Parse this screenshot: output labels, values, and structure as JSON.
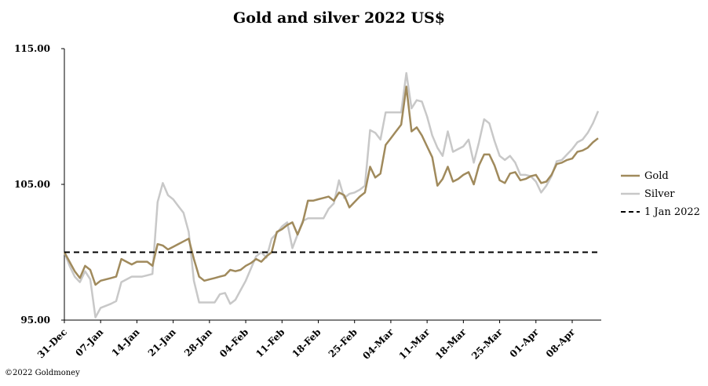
{
  "chart_data": {
    "type": "line",
    "title": "Gold and silver 2022  US$",
    "xlabel": "",
    "ylabel": "",
    "ylim": [
      95,
      115
    ],
    "yticks": [
      "95.00",
      "105.00",
      "115.00"
    ],
    "xticks": [
      "31-Dec",
      "07-Jan",
      "14-Jan",
      "21-Jan",
      "28-Jan",
      "04-Feb",
      "11-Feb",
      "18-Feb",
      "25-Feb",
      "04-Mar",
      "11-Mar",
      "18-Mar",
      "25-Mar",
      "01-Apr",
      "08-Apr"
    ],
    "grid": false,
    "legend_position": "right",
    "series": [
      {
        "name": "Gold",
        "color": "#a08a5c",
        "x": [
          0,
          1,
          2,
          3,
          4,
          5,
          6,
          7,
          9,
          10,
          11,
          13,
          14,
          15,
          16,
          17,
          18,
          19,
          20,
          21,
          22,
          23,
          24,
          25,
          26,
          27,
          28,
          29,
          30,
          31,
          32,
          33,
          34,
          35,
          36,
          37,
          38,
          39,
          40,
          41,
          42,
          43,
          44,
          45,
          46,
          47,
          48,
          49,
          50,
          51,
          52,
          53,
          54,
          55,
          56,
          57,
          58,
          59,
          60,
          61,
          62,
          63,
          64,
          65,
          66,
          67,
          68,
          69,
          70,
          71,
          72,
          73,
          74,
          75,
          76,
          77,
          78,
          79,
          80,
          81,
          82,
          83,
          84,
          85,
          86,
          87,
          88,
          89,
          90,
          91,
          92,
          93,
          94,
          95,
          96,
          97,
          98,
          99,
          100,
          101,
          102,
          103
        ],
        "y": [
          100,
          99.3,
          98.6,
          98.1,
          99,
          98.7,
          97.6,
          97.9,
          98.1,
          98.2,
          99.5,
          99.1,
          99.3,
          99.3,
          99.3,
          99,
          100.6,
          100.5,
          100.2,
          100.4,
          100.6,
          100.8,
          101,
          99.5,
          98.2,
          97.9,
          98,
          98.1,
          98.2,
          98.3,
          98.7,
          98.6,
          98.7,
          99,
          99.2,
          99.5,
          99.3,
          99.7,
          100,
          101.5,
          101.7,
          102,
          102.2,
          101.3,
          102.2,
          103.8,
          103.8,
          103.9,
          104,
          104.1,
          103.8,
          104.4,
          104.2,
          103.3,
          103.7,
          104.1,
          104.4,
          106.3,
          105.5,
          105.8,
          107.9,
          108.4,
          108.9,
          109.4,
          112.2,
          108.9,
          109.2,
          108.6,
          107.8,
          107,
          104.9,
          105.4,
          106.3,
          105.2,
          105.4,
          105.7,
          105.9,
          105,
          106.4,
          107.2,
          107.2,
          106.4,
          105.3,
          105.1,
          105.8,
          105.9,
          105.3,
          105.4,
          105.6,
          105.7,
          105.1,
          105.2,
          105.7,
          106.5,
          106.6,
          106.8,
          106.9,
          107.4,
          107.5,
          107.7,
          108.1,
          108.4
        ]
      },
      {
        "name": "Silver",
        "color": "#c8c8c8",
        "x": [
          0,
          1,
          2,
          3,
          4,
          5,
          6,
          7,
          9,
          10,
          11,
          13,
          14,
          15,
          16,
          17,
          18,
          19,
          20,
          21,
          22,
          23,
          24,
          25,
          26,
          27,
          28,
          29,
          30,
          31,
          32,
          33,
          34,
          35,
          36,
          37,
          38,
          39,
          40,
          41,
          42,
          43,
          44,
          45,
          46,
          47,
          48,
          49,
          50,
          51,
          52,
          53,
          54,
          55,
          56,
          57,
          58,
          59,
          60,
          61,
          62,
          63,
          64,
          65,
          66,
          67,
          68,
          69,
          70,
          71,
          72,
          73,
          74,
          75,
          76,
          77,
          78,
          79,
          80,
          81,
          82,
          83,
          84,
          85,
          86,
          87,
          88,
          89,
          90,
          91,
          92,
          93,
          94,
          95,
          96,
          97,
          98,
          99,
          100,
          101,
          102,
          103
        ],
        "y": [
          100,
          99,
          98.2,
          97.8,
          98.6,
          98,
          95.2,
          95.9,
          96.2,
          96.4,
          97.8,
          98.2,
          98.2,
          98.2,
          98.3,
          98.4,
          103.7,
          105.1,
          104.2,
          103.9,
          103.4,
          102.9,
          101.5,
          97.9,
          96.3,
          96.3,
          96.3,
          96.3,
          96.9,
          97,
          96.2,
          96.5,
          97.2,
          97.9,
          98.8,
          99.7,
          100,
          99.6,
          101,
          101.4,
          101.9,
          102.2,
          100.3,
          101.3,
          102.3,
          102.5,
          102.5,
          102.5,
          102.5,
          103.2,
          103.6,
          105.3,
          104,
          104.3,
          104.4,
          104.6,
          104.9,
          109,
          108.8,
          108.3,
          110.3,
          110.3,
          110.3,
          110.3,
          113.2,
          110.6,
          111.2,
          111.1,
          110,
          108.6,
          107.7,
          107.1,
          108.9,
          107.4,
          107.6,
          107.8,
          108.3,
          106.6,
          108.1,
          109.8,
          109.5,
          108.2,
          107.1,
          106.8,
          107.1,
          106.6,
          105.7,
          105.7,
          105.6,
          105.2,
          104.4,
          104.9,
          105.6,
          106.7,
          106.8,
          107.2,
          107.6,
          108.1,
          108.3,
          108.8,
          109.5,
          110.4
        ]
      },
      {
        "name": "1 Jan 2022",
        "color": "#000000",
        "dashed": true,
        "x": [
          0,
          103
        ],
        "y": [
          100,
          100
        ]
      }
    ]
  },
  "footer": {
    "copyright": "©2022 Goldmoney"
  }
}
